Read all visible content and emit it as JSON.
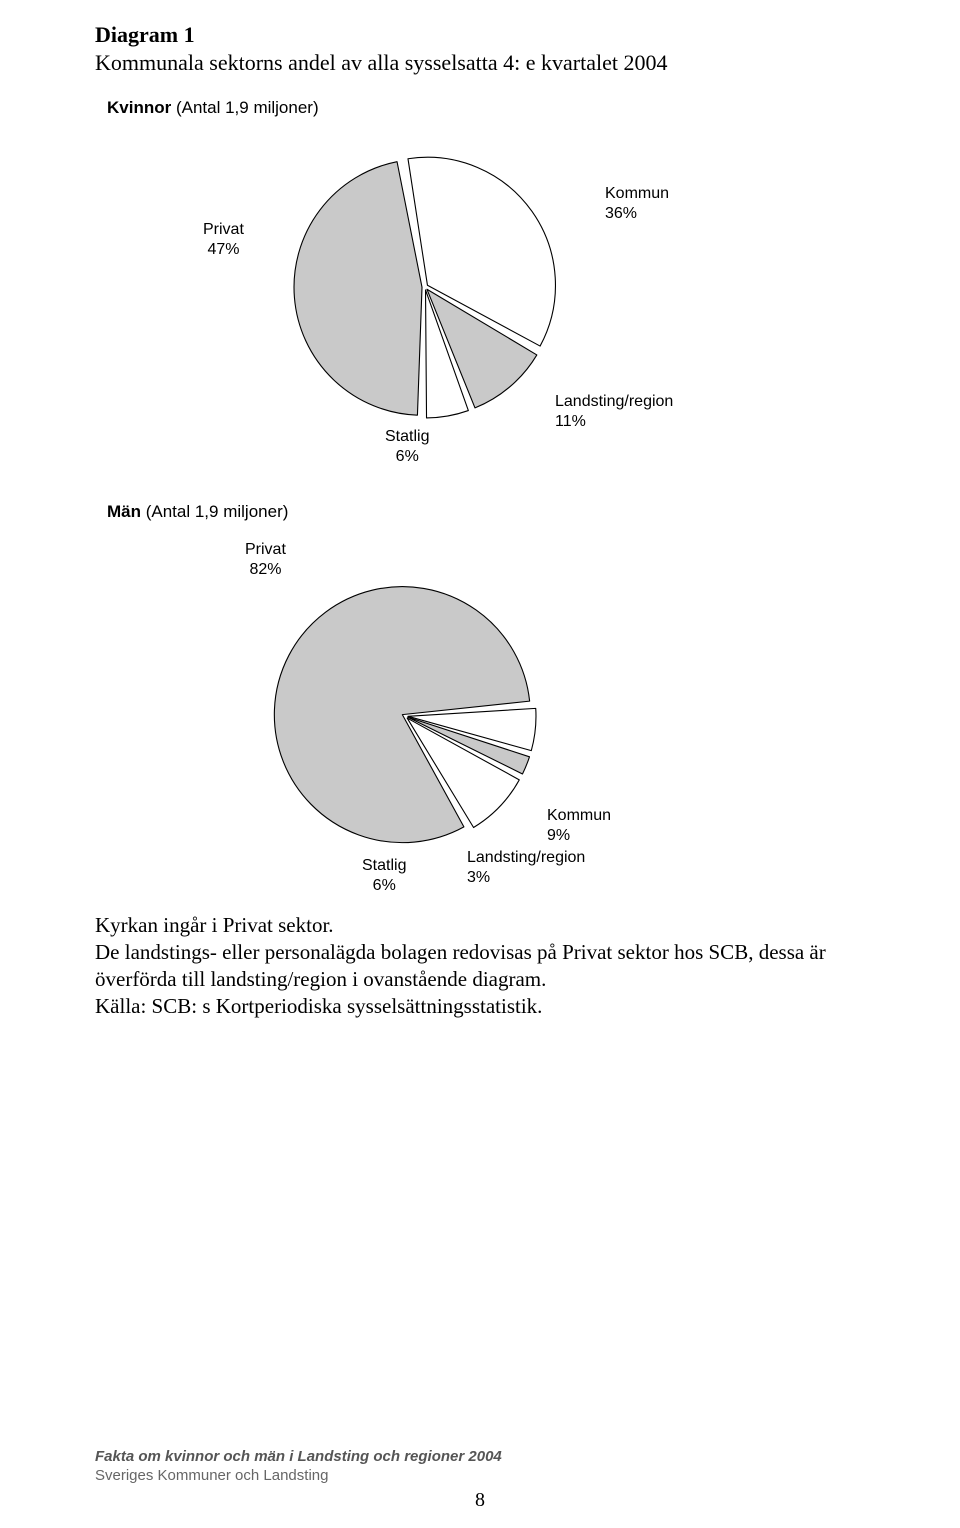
{
  "header": {
    "title": "Diagram 1",
    "subtitle": "Kommunala sektorns andel av alla sysselsatta 4: e kvartalet 2004"
  },
  "chart1": {
    "group_label_bold": "Kvinnor",
    "group_label_rest": " (Antal 1,9 miljoner)",
    "type": "pie",
    "radius": 128,
    "stroke": "#000000",
    "stroke_width": 1.1,
    "gap_deg": 2.5,
    "slices": [
      {
        "name": "Kommun",
        "value": 36,
        "label": "Kommun\n36%",
        "color": "#ffffff"
      },
      {
        "name": "Landsting/region",
        "value": 11,
        "label": "Landsting/region\n11%",
        "color": "#c9c9c9"
      },
      {
        "name": "Statlig",
        "value": 6,
        "label": "Statlig\n6%",
        "color": "#ffffff"
      },
      {
        "name": "Privat",
        "value": 47,
        "label": "Privat\n47%",
        "color": "#c9c9c9"
      }
    ],
    "label_font_size": 16
  },
  "chart2": {
    "group_label_bold": "Män",
    "group_label_rest": " (Antal 1,9 miljoner)",
    "type": "pie",
    "radius": 128,
    "stroke": "#000000",
    "stroke_width": 1.1,
    "gap_deg": 2.5,
    "slices": [
      {
        "name": "Privat",
        "value": 82,
        "label": "Privat\n82%",
        "color": "#c9c9c9"
      },
      {
        "name": "Statlig",
        "value": 6,
        "label": "Statlig\n6%",
        "color": "#ffffff"
      },
      {
        "name": "Landsting/region",
        "value": 3,
        "label": "Landsting/region\n3%",
        "color": "#c9c9c9"
      },
      {
        "name": "Kommun",
        "value": 9,
        "label": "Kommun\n9%",
        "color": "#ffffff"
      }
    ],
    "label_font_size": 16
  },
  "body": {
    "line1": "Kyrkan ingår i Privat sektor.",
    "line2": "De landstings- eller personalägda bolagen redovisas på Privat sektor hos SCB, dessa är överförda till landsting/region i ovanstående diagram.",
    "line3": "Källa: SCB: s Kortperiodiska sysselsättningsstatistik."
  },
  "footer": {
    "line1": "Fakta om kvinnor och män i Landsting och regioner 2004",
    "line2": "Sveriges Kommuner och Landsting",
    "page_number": "8"
  }
}
